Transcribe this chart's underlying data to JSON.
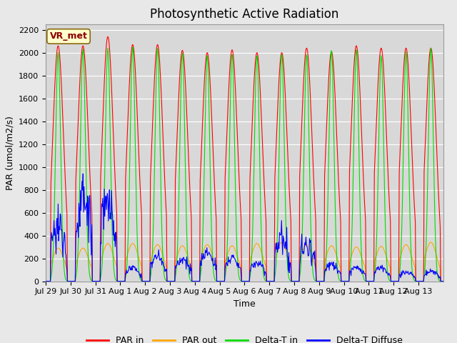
{
  "title": "Photosynthetic Active Radiation",
  "ylabel": "PAR (umol/m2/s)",
  "xlabel": "Time",
  "annotation": "VR_met",
  "ylim": [
    0,
    2250
  ],
  "yticks": [
    0,
    200,
    400,
    600,
    800,
    1000,
    1200,
    1400,
    1600,
    1800,
    2000,
    2200
  ],
  "xtick_labels": [
    "Jul 29",
    "Jul 30",
    "Jul 31",
    "Aug 1",
    "Aug 2",
    "Aug 3",
    "Aug 4",
    "Aug 5",
    "Aug 6",
    "Aug 7",
    "Aug 8",
    "Aug 9",
    "Aug 10",
    "Aug 11",
    "Aug 12",
    "Aug 13"
  ],
  "colors": {
    "PAR_in": "#ff0000",
    "PAR_out": "#ffa500",
    "Delta_T_in": "#00dd00",
    "Delta_T_Diffuse": "#0000ff"
  },
  "legend_labels": [
    "PAR in",
    "PAR out",
    "Delta-T in",
    "Delta-T Diffuse"
  ],
  "fig_bg_color": "#e8e8e8",
  "plot_bg_color": "#d8d8d8",
  "grid_color": "#ffffff",
  "title_fontsize": 12,
  "label_fontsize": 9,
  "tick_fontsize": 8
}
